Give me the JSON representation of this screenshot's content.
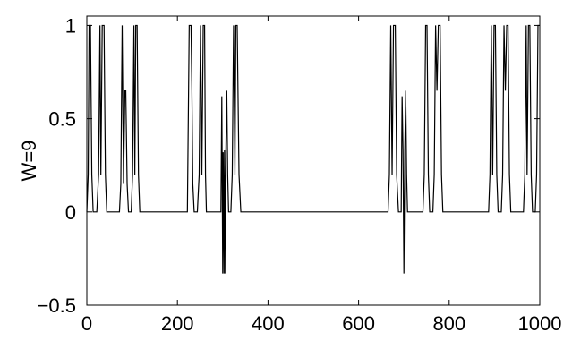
{
  "chart_data": {
    "type": "line",
    "title": "",
    "xlabel": "",
    "ylabel": "W=9",
    "xlim": [
      0,
      1000
    ],
    "ylim": [
      -0.5,
      1.05
    ],
    "x_ticks": [
      0,
      200,
      400,
      600,
      800,
      1000
    ],
    "x_tick_labels": [
      "0",
      "200",
      "400",
      "600",
      "800",
      "1000"
    ],
    "y_ticks": [
      -0.5,
      0,
      0.5,
      1
    ],
    "y_tick_labels": [
      "−0.5",
      "0",
      "0.5",
      "1"
    ],
    "grid": false,
    "legend": "none",
    "series": [
      {
        "color": "#000000",
        "points": [
          [
            0,
            0
          ],
          [
            3,
            0.2
          ],
          [
            5,
            1
          ],
          [
            8,
            1
          ],
          [
            11,
            0.2
          ],
          [
            14,
            0
          ],
          [
            22,
            0
          ],
          [
            26,
            0.2
          ],
          [
            29,
            1
          ],
          [
            31,
            0.2
          ],
          [
            34,
            1
          ],
          [
            38,
            1
          ],
          [
            41,
            0.2
          ],
          [
            44,
            0
          ],
          [
            72,
            0
          ],
          [
            75,
            0.15
          ],
          [
            78,
            1
          ],
          [
            81,
            0.15
          ],
          [
            84,
            0.65
          ],
          [
            86,
            0.65
          ],
          [
            89,
            0.15
          ],
          [
            92,
            0
          ],
          [
            98,
            0
          ],
          [
            101,
            0.2
          ],
          [
            104,
            1
          ],
          [
            106,
            0.2
          ],
          [
            108,
            1
          ],
          [
            111,
            1
          ],
          [
            114,
            0.2
          ],
          [
            117,
            0
          ],
          [
            222,
            0
          ],
          [
            226,
            1
          ],
          [
            230,
            1
          ],
          [
            232,
            0.65
          ],
          [
            234,
            0.15
          ],
          [
            237,
            0
          ],
          [
            244,
            0
          ],
          [
            248,
            0.2
          ],
          [
            251,
            1
          ],
          [
            254,
            0.2
          ],
          [
            257,
            1
          ],
          [
            260,
            1
          ],
          [
            262,
            0.2
          ],
          [
            264,
            0
          ],
          [
            296,
            0
          ],
          [
            298,
            0.62
          ],
          [
            300,
            -0.33
          ],
          [
            301,
            0.32
          ],
          [
            303,
            -0.33
          ],
          [
            304,
            0.33
          ],
          [
            306,
            -0.33
          ],
          [
            307,
            0.33
          ],
          [
            309,
            0.65
          ],
          [
            311,
            0.2
          ],
          [
            313,
            0
          ],
          [
            318,
            0
          ],
          [
            321,
            0.2
          ],
          [
            324,
            1
          ],
          [
            327,
            0.2
          ],
          [
            329,
            1
          ],
          [
            332,
            1
          ],
          [
            336,
            0.2
          ],
          [
            340,
            0
          ],
          [
            665,
            0
          ],
          [
            668,
            0.2
          ],
          [
            671,
            1
          ],
          [
            674,
            0.2
          ],
          [
            677,
            1
          ],
          [
            681,
            1
          ],
          [
            684,
            0.2
          ],
          [
            688,
            0
          ],
          [
            694,
            0
          ],
          [
            696,
            0.62
          ],
          [
            698,
            0.33
          ],
          [
            700,
            -0.33
          ],
          [
            702,
            0.33
          ],
          [
            704,
            0.65
          ],
          [
            706,
            0.2
          ],
          [
            708,
            0
          ],
          [
            742,
            0
          ],
          [
            745,
            0.2
          ],
          [
            748,
            1
          ],
          [
            751,
            1
          ],
          [
            754,
            0.2
          ],
          [
            757,
            0
          ],
          [
            764,
            0
          ],
          [
            767,
            0.2
          ],
          [
            770,
            1
          ],
          [
            773,
            0.65
          ],
          [
            776,
            1
          ],
          [
            780,
            1
          ],
          [
            783,
            0.2
          ],
          [
            786,
            0
          ],
          [
            887,
            0
          ],
          [
            890,
            0.2
          ],
          [
            893,
            1
          ],
          [
            896,
            0.2
          ],
          [
            899,
            1
          ],
          [
            902,
            1
          ],
          [
            905,
            0.2
          ],
          [
            908,
            0
          ],
          [
            915,
            0
          ],
          [
            918,
            0.2
          ],
          [
            921,
            1
          ],
          [
            924,
            0.65
          ],
          [
            927,
            1
          ],
          [
            930,
            1
          ],
          [
            933,
            0.2
          ],
          [
            936,
            0
          ],
          [
            964,
            0
          ],
          [
            967,
            0.2
          ],
          [
            970,
            1
          ],
          [
            972,
            0.2
          ],
          [
            975,
            1
          ],
          [
            978,
            1
          ],
          [
            981,
            0.2
          ],
          [
            984,
            0
          ],
          [
            990,
            0
          ],
          [
            993,
            0.2
          ],
          [
            996,
            1
          ],
          [
            999,
            1
          ],
          [
            1000,
            1
          ]
        ]
      }
    ]
  }
}
